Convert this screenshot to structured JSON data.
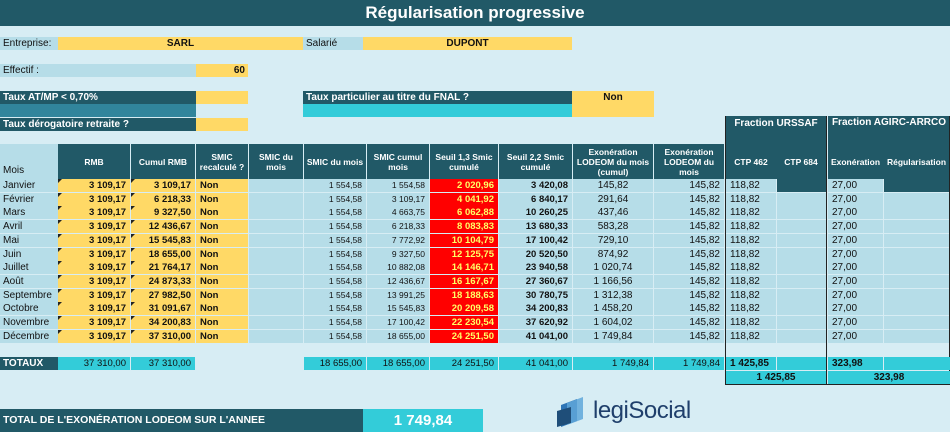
{
  "title": "Régularisation progressive",
  "form": {
    "entreprise_label": "Entreprise:",
    "entreprise_value": "SARL",
    "salarie_label": "Salarié",
    "salarie_value": "DUPONT",
    "effectif_label": "Effectif :",
    "effectif_value": "60",
    "taux_atmp_label": "Taux AT/MP < 0,70%",
    "taux_fnal_label": "Taux particulier au titre du FNAL ?",
    "taux_fnal_value": "Non",
    "taux_derog_label": "Taux dérogatoire retraite ?"
  },
  "fractions": {
    "urssaf": "Fraction URSSAF",
    "agirc": "Fraction AGIRC-ARRCO"
  },
  "headers": {
    "mois": "Mois",
    "rmb": "RMB",
    "cumul_rmb": "Cumul RMB",
    "smic_recalc": "SMIC recalculé ?",
    "smic_du_mois": "SMIC du mois",
    "smic_du_mois2": "SMIC du mois",
    "smic_cumul": "SMIC cumul mois",
    "seuil13": "Seuil 1,3 Smic cumulé",
    "seuil22": "Seuil 2,2 Smic cumulé",
    "exo_cumul": "Exonération LODEOM du mois (cumul)",
    "exo_mois": "Exonération LODEOM du mois",
    "ctp462": "CTP 462",
    "ctp684": "CTP 684",
    "exoneration": "Exonération",
    "regularisation": "Régularisation"
  },
  "rows": [
    {
      "mois": "Janvier",
      "rmb": "3 109,17",
      "cumul": "3 109,17",
      "recalc": "Non",
      "smic": "1 554,58",
      "smic_cumul": "1 554,58",
      "seuil13": "2 020,96",
      "seuil22": "3 420,08",
      "exo_cumul": "145,82",
      "exo_mois": "145,82",
      "ctp462": "118,82",
      "agirc": "27,00"
    },
    {
      "mois": "Février",
      "rmb": "3 109,17",
      "cumul": "6 218,33",
      "recalc": "Non",
      "smic": "1 554,58",
      "smic_cumul": "3 109,17",
      "seuil13": "4 041,92",
      "seuil22": "6 840,17",
      "exo_cumul": "291,64",
      "exo_mois": "145,82",
      "ctp462": "118,82",
      "agirc": "27,00"
    },
    {
      "mois": "Mars",
      "rmb": "3 109,17",
      "cumul": "9 327,50",
      "recalc": "Non",
      "smic": "1 554,58",
      "smic_cumul": "4 663,75",
      "seuil13": "6 062,88",
      "seuil22": "10 260,25",
      "exo_cumul": "437,46",
      "exo_mois": "145,82",
      "ctp462": "118,82",
      "agirc": "27,00"
    },
    {
      "mois": "Avril",
      "rmb": "3 109,17",
      "cumul": "12 436,67",
      "recalc": "Non",
      "smic": "1 554,58",
      "smic_cumul": "6 218,33",
      "seuil13": "8 083,83",
      "seuil22": "13 680,33",
      "exo_cumul": "583,28",
      "exo_mois": "145,82",
      "ctp462": "118,82",
      "agirc": "27,00"
    },
    {
      "mois": "Mai",
      "rmb": "3 109,17",
      "cumul": "15 545,83",
      "recalc": "Non",
      "smic": "1 554,58",
      "smic_cumul": "7 772,92",
      "seuil13": "10 104,79",
      "seuil22": "17 100,42",
      "exo_cumul": "729,10",
      "exo_mois": "145,82",
      "ctp462": "118,82",
      "agirc": "27,00"
    },
    {
      "mois": "Juin",
      "rmb": "3 109,17",
      "cumul": "18 655,00",
      "recalc": "Non",
      "smic": "1 554,58",
      "smic_cumul": "9 327,50",
      "seuil13": "12 125,75",
      "seuil22": "20 520,50",
      "exo_cumul": "874,92",
      "exo_mois": "145,82",
      "ctp462": "118,82",
      "agirc": "27,00"
    },
    {
      "mois": "Juillet",
      "rmb": "3 109,17",
      "cumul": "21 764,17",
      "recalc": "Non",
      "smic": "1 554,58",
      "smic_cumul": "10 882,08",
      "seuil13": "14 146,71",
      "seuil22": "23 940,58",
      "exo_cumul": "1 020,74",
      "exo_mois": "145,82",
      "ctp462": "118,82",
      "agirc": "27,00"
    },
    {
      "mois": "Août",
      "rmb": "3 109,17",
      "cumul": "24 873,33",
      "recalc": "Non",
      "smic": "1 554,58",
      "smic_cumul": "12 436,67",
      "seuil13": "16 167,67",
      "seuil22": "27 360,67",
      "exo_cumul": "1 166,56",
      "exo_mois": "145,82",
      "ctp462": "118,82",
      "agirc": "27,00"
    },
    {
      "mois": "Septembre",
      "rmb": "3 109,17",
      "cumul": "27 982,50",
      "recalc": "Non",
      "smic": "1 554,58",
      "smic_cumul": "13 991,25",
      "seuil13": "18 188,63",
      "seuil22": "30 780,75",
      "exo_cumul": "1 312,38",
      "exo_mois": "145,82",
      "ctp462": "118,82",
      "agirc": "27,00"
    },
    {
      "mois": "Octobre",
      "rmb": "3 109,17",
      "cumul": "31 091,67",
      "recalc": "Non",
      "smic": "1 554,58",
      "smic_cumul": "15 545,83",
      "seuil13": "20 209,58",
      "seuil22": "34 200,83",
      "exo_cumul": "1 458,20",
      "exo_mois": "145,82",
      "ctp462": "118,82",
      "agirc": "27,00"
    },
    {
      "mois": "Novembre",
      "rmb": "3 109,17",
      "cumul": "34 200,83",
      "recalc": "Non",
      "smic": "1 554,58",
      "smic_cumul": "17 100,42",
      "seuil13": "22 230,54",
      "seuil22": "37 620,92",
      "exo_cumul": "1 604,02",
      "exo_mois": "145,82",
      "ctp462": "118,82",
      "agirc": "27,00"
    },
    {
      "mois": "Décembre",
      "rmb": "3 109,17",
      "cumul": "37 310,00",
      "recalc": "Non",
      "smic": "1 554,58",
      "smic_cumul": "18 655,00",
      "seuil13": "24 251,50",
      "seuil22": "41 041,00",
      "exo_cumul": "1 749,84",
      "exo_mois": "145,82",
      "ctp462": "118,82",
      "agirc": "27,00"
    }
  ],
  "totaux": {
    "label": "TOTAUX",
    "rmb": "37 310,00",
    "cumul": "37 310,00",
    "smic": "18 655,00",
    "smic_cumul": "18 655,00",
    "seuil13": "24 251,50",
    "seuil22": "41 041,00",
    "exo_cumul": "1 749,84",
    "exo_mois": "1 749,84",
    "ctp462": "1 425,85",
    "agirc": "323,98",
    "urssaf_total": "1 425,85",
    "agirc_total": "323,98"
  },
  "footer": {
    "label": "TOTAL DE L'EXONÉRATION LODEOM SUR L'ANNEE",
    "value": "1 749,84",
    "logo_text": "legiSocial"
  }
}
